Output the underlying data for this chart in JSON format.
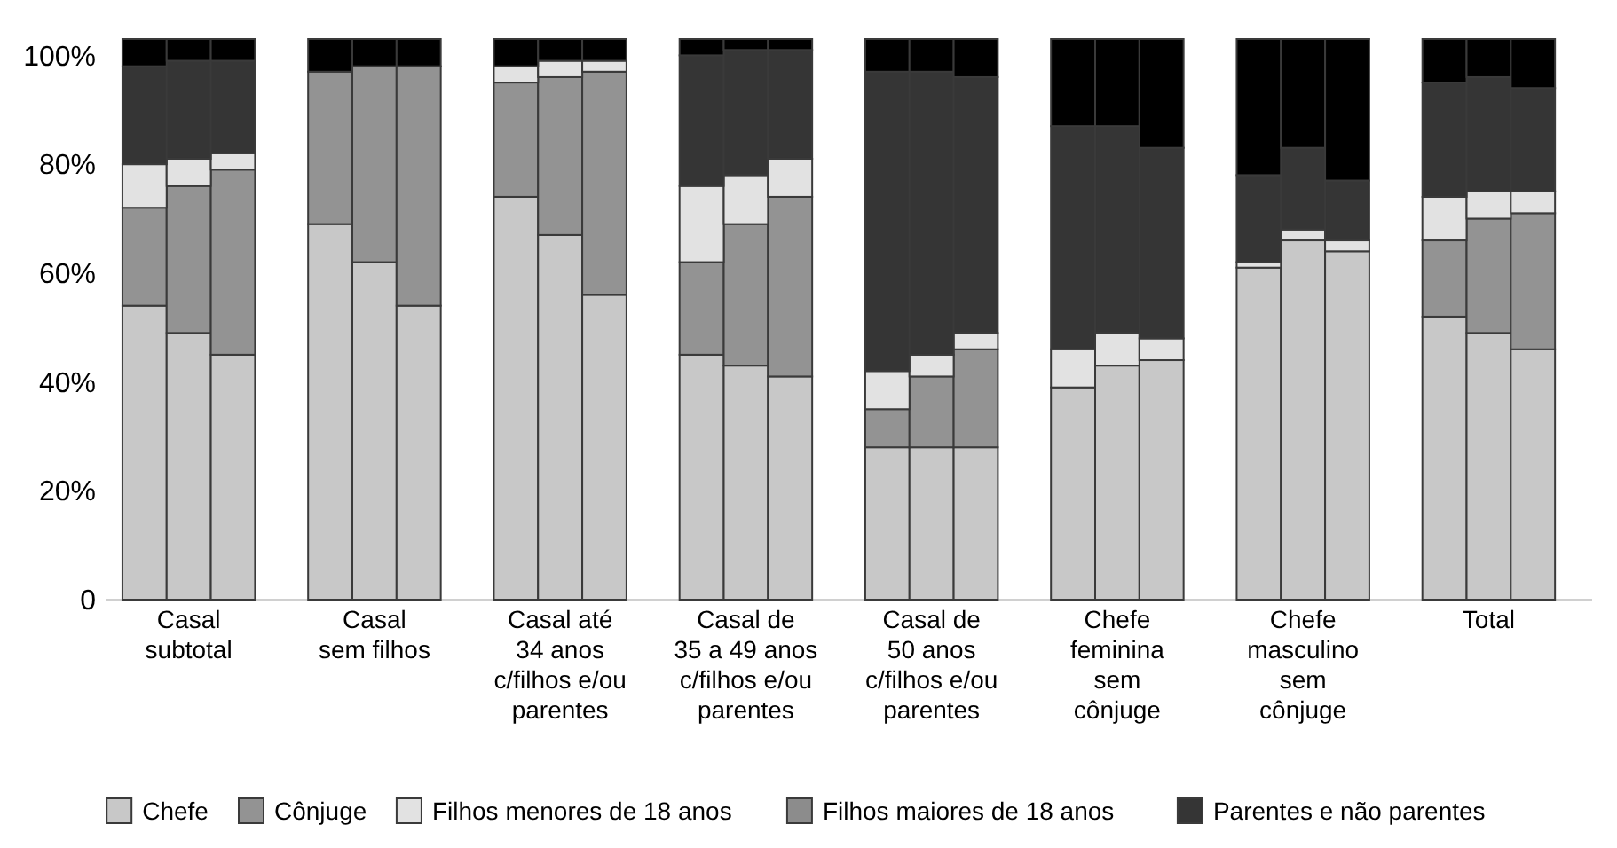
{
  "chart_data": {
    "type": "bar",
    "stacked": true,
    "categories": [
      null,
      "Casal\nsubtotal",
      null,
      null,
      "Casal\nsem filhos",
      null,
      null,
      "Casal até\n34 anos\nc/filhos e/ou\nparentes",
      null,
      null,
      "Casal de\n35 a 49 anos\nc/filhos e/ou\nparentes",
      null,
      null,
      "Casal de\n50 anos\nc/filhos e/ou\nparentes",
      null,
      null,
      "Chefe\nfeminina\nsem\ncônjuge",
      null,
      null,
      "Chefe\nmasculino\nsem\ncônjuge",
      null,
      null,
      "Total",
      null
    ],
    "series": [
      {
        "name": "Chefe",
        "color": "#c8c8c8",
        "values": [
          54,
          49,
          45,
          69,
          62,
          54,
          74,
          67,
          56,
          45,
          43,
          41,
          28,
          28,
          28,
          39,
          43,
          44,
          61,
          66,
          64,
          52,
          49,
          46
        ]
      },
      {
        "name": "Cônjuge",
        "color": "#939393",
        "values": [
          18,
          27,
          34,
          28,
          36,
          44,
          21,
          29,
          41,
          17,
          26,
          33,
          7,
          13,
          18,
          null,
          null,
          null,
          null,
          null,
          null,
          14,
          21,
          25
        ]
      },
      {
        "name": "Filhos menores de 18 anos",
        "color": "#e2e2e2",
        "values": [
          8,
          5,
          3,
          null,
          null,
          null,
          3,
          3,
          2,
          14,
          9,
          7,
          7,
          4,
          3,
          7,
          6,
          4,
          1,
          2,
          2,
          8,
          5,
          4
        ]
      },
      {
        "name": "Filhos maiores de 18 anos",
        "color": "#8c8c8c",
        "values": [
          null,
          null,
          null,
          null,
          null,
          null,
          null,
          null,
          null,
          null,
          null,
          null,
          null,
          null,
          null,
          null,
          null,
          null,
          null,
          null,
          null,
          null,
          null,
          null
        ]
      },
      {
        "name": "Parentes e não parentes",
        "color": "#353535",
        "values": [
          18,
          18,
          17,
          null,
          null,
          null,
          null,
          null,
          null,
          24,
          23,
          20,
          55,
          52,
          47,
          41,
          38,
          35,
          16,
          15,
          11,
          21,
          21,
          19
        ]
      },
      {
        "color": "#000000",
        "values": [
          5,
          4,
          4,
          6,
          5,
          5,
          5,
          4,
          4,
          3,
          2,
          2,
          6,
          6,
          7,
          16,
          16,
          20,
          25,
          20,
          26,
          8,
          7,
          9
        ]
      }
    ],
    "ylim": [
      0,
      103
    ],
    "yticks": [
      0,
      {
        "value": 20,
        "label": "20%"
      },
      {
        "value": 40,
        "label": "40%"
      },
      {
        "value": 60,
        "label": "60%"
      },
      {
        "value": 80,
        "label": "80%"
      },
      {
        "value": 100,
        "label": "100%"
      }
    ],
    "grid": false,
    "legend": "bottom"
  }
}
